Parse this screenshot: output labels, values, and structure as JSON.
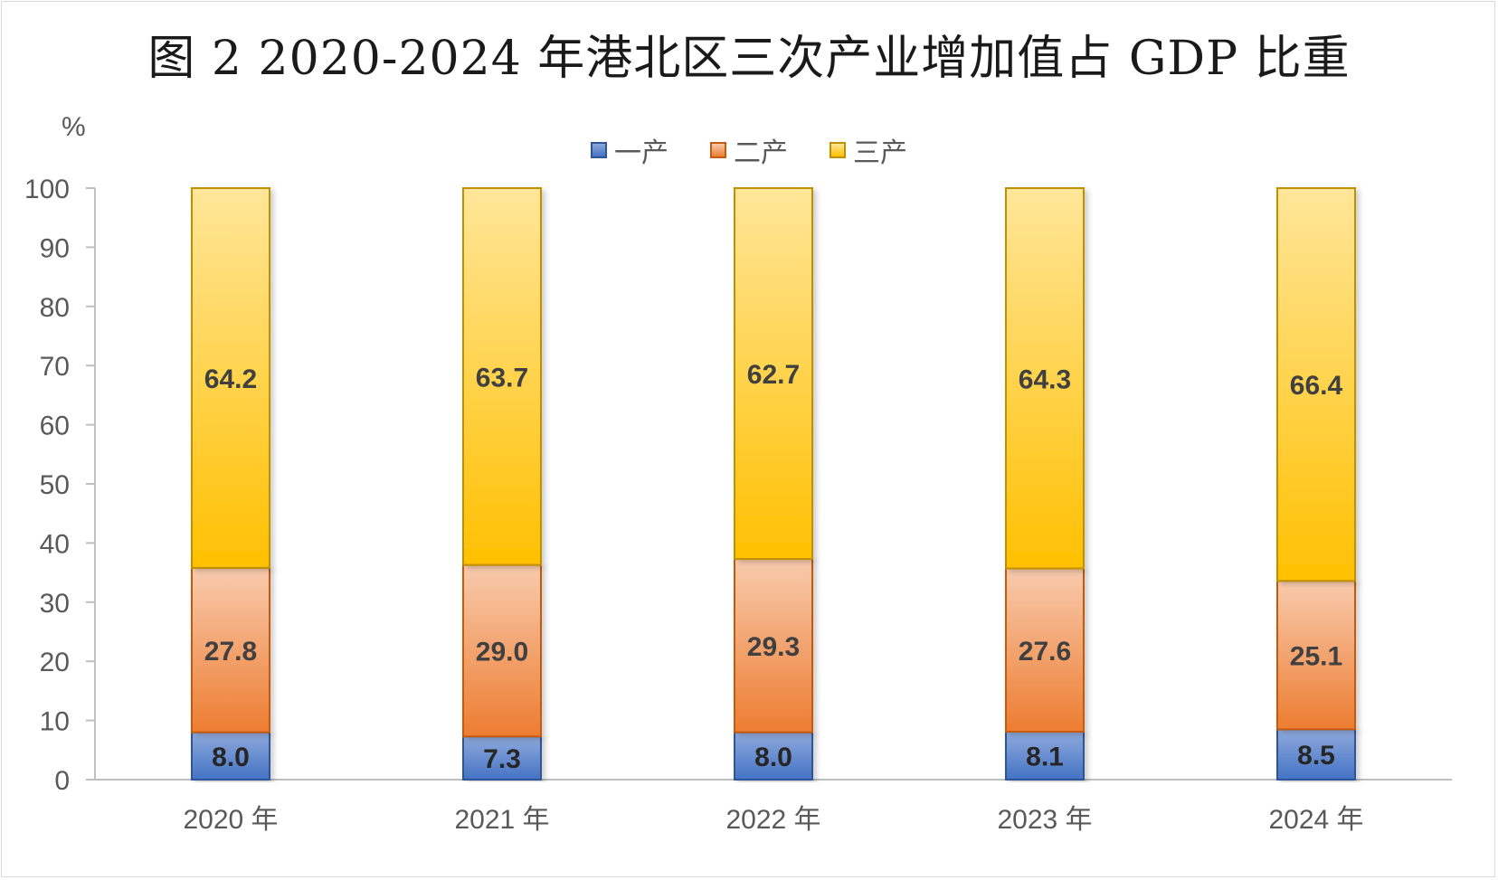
{
  "chart_data": {
    "type": "bar",
    "stacked": true,
    "title": "图 2  2020-2024 年港北区三次产业增加值占 GDP 比重",
    "ylabel": "%",
    "xlabel": "",
    "categories": [
      "2020 年",
      "2021 年",
      "2022 年",
      "2023 年",
      "2024 年"
    ],
    "series": [
      {
        "name": "一产",
        "values": [
          8.0,
          7.3,
          8.0,
          8.1,
          8.5
        ],
        "color": "#4472c4"
      },
      {
        "name": "二产",
        "values": [
          27.8,
          29.0,
          29.3,
          27.6,
          25.1
        ],
        "color": "#ed7d31"
      },
      {
        "name": "三产",
        "values": [
          64.2,
          63.7,
          62.7,
          64.3,
          66.4
        ],
        "color": "#ffc000"
      }
    ],
    "ylim": [
      0,
      100
    ],
    "yticks": [
      0,
      10,
      20,
      30,
      40,
      50,
      60,
      70,
      80,
      90,
      100
    ],
    "grid": false,
    "legend": "top-center"
  }
}
